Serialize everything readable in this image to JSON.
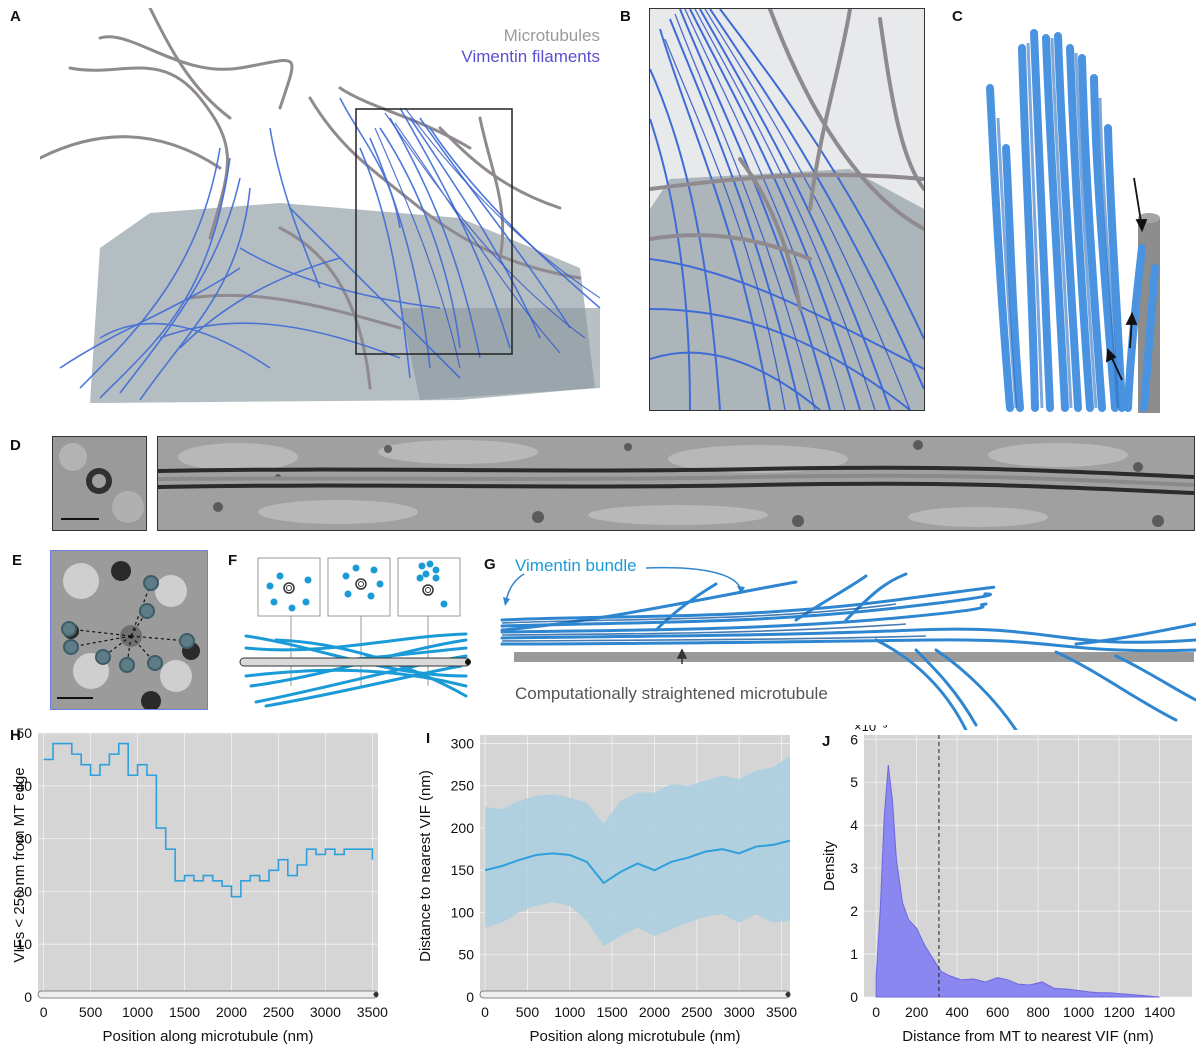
{
  "panels": {
    "A": "A",
    "B": "B",
    "C": "C",
    "D": "D",
    "E": "E",
    "F": "F",
    "G": "G",
    "H": "H",
    "I": "I",
    "J": "J"
  },
  "legend_a": {
    "microtubules": "Microtubules",
    "vimentin": "Vimentin filaments"
  },
  "panel_g": {
    "bundle_label": "Vimentin bundle",
    "mt_label": "Computationally straightened microtubule"
  },
  "colors": {
    "microtubule": "#8f8a8f",
    "vimentin": "#3a6fd8",
    "vimentin_light": "#2ea0dc",
    "plot_bg": "#d5d5d5",
    "band": "#a9cfe0",
    "density": "#8b87f0"
  },
  "chart_data": [
    {
      "type": "line",
      "panel": "H",
      "xlabel": "Position along microtubule (nm)",
      "ylabel": "VIFs < 250 nm from MT edge",
      "xlim": [
        -60,
        3560
      ],
      "ylim": [
        0,
        50
      ],
      "xticks": [
        0,
        500,
        1000,
        1500,
        2000,
        2500,
        3000,
        3500
      ],
      "yticks": [
        0,
        10,
        20,
        30,
        40,
        50
      ],
      "grid": true,
      "x": [
        0,
        100,
        200,
        300,
        400,
        500,
        600,
        700,
        800,
        900,
        1000,
        1100,
        1200,
        1300,
        1400,
        1500,
        1600,
        1700,
        1800,
        1900,
        2000,
        2100,
        2200,
        2300,
        2400,
        2500,
        2600,
        2700,
        2800,
        2900,
        3000,
        3100,
        3200,
        3300,
        3400,
        3500
      ],
      "y": [
        45,
        48,
        48,
        46,
        44,
        42,
        44,
        46,
        48,
        42,
        44,
        42,
        32,
        28,
        22,
        23,
        22,
        23,
        22,
        21,
        19,
        22,
        23,
        22,
        24,
        26,
        23,
        25,
        28,
        27,
        28,
        27,
        28,
        28,
        28,
        26
      ]
    },
    {
      "type": "line",
      "panel": "I",
      "xlabel": "Position along microtubule (nm)",
      "ylabel": "Distance to nearest VIF (nm)",
      "xlim": [
        -60,
        3600
      ],
      "ylim": [
        0,
        310
      ],
      "xticks": [
        0,
        500,
        1000,
        1500,
        2000,
        2500,
        3000,
        3500
      ],
      "yticks": [
        0,
        50,
        100,
        150,
        200,
        250,
        300
      ],
      "grid": true,
      "x": [
        0,
        200,
        400,
        600,
        800,
        1000,
        1200,
        1400,
        1600,
        1800,
        2000,
        2200,
        2400,
        2600,
        2800,
        3000,
        3200,
        3400,
        3600
      ],
      "mean": [
        150,
        155,
        162,
        168,
        170,
        168,
        160,
        135,
        148,
        158,
        150,
        160,
        165,
        172,
        175,
        170,
        178,
        180,
        185
      ],
      "upper": [
        225,
        222,
        232,
        238,
        240,
        236,
        230,
        205,
        232,
        242,
        242,
        252,
        250,
        256,
        262,
        258,
        268,
        272,
        285
      ],
      "lower": [
        82,
        88,
        100,
        108,
        112,
        108,
        90,
        60,
        72,
        82,
        72,
        80,
        88,
        95,
        98,
        88,
        98,
        88,
        90
      ]
    },
    {
      "type": "area",
      "panel": "J",
      "xlabel": "Distance from MT to nearest VIF (nm)",
      "ylabel": "Density",
      "exponent_label": "×10⁻³",
      "xlim": [
        -60,
        1560
      ],
      "ylim": [
        0,
        6.1
      ],
      "xticks": [
        0,
        200,
        400,
        600,
        800,
        1000,
        1200,
        1400
      ],
      "yticks": [
        0,
        1,
        2,
        3,
        4,
        5,
        6
      ],
      "grid": true,
      "dashed_x": 310,
      "x": [
        0,
        20,
        40,
        60,
        80,
        100,
        130,
        160,
        200,
        240,
        280,
        320,
        360,
        420,
        480,
        540,
        600,
        650,
        700,
        760,
        820,
        880,
        950,
        1000,
        1050,
        1100,
        1150,
        1200,
        1250,
        1300,
        1350,
        1400
      ],
      "y": [
        0.5,
        2.0,
        4.2,
        5.4,
        4.6,
        3.2,
        2.2,
        1.8,
        1.6,
        1.2,
        0.9,
        0.6,
        0.5,
        0.4,
        0.42,
        0.35,
        0.45,
        0.4,
        0.3,
        0.28,
        0.35,
        0.2,
        0.18,
        0.15,
        0.12,
        0.1,
        0.1,
        0.08,
        0.06,
        0.04,
        0.02,
        0.0
      ]
    }
  ]
}
